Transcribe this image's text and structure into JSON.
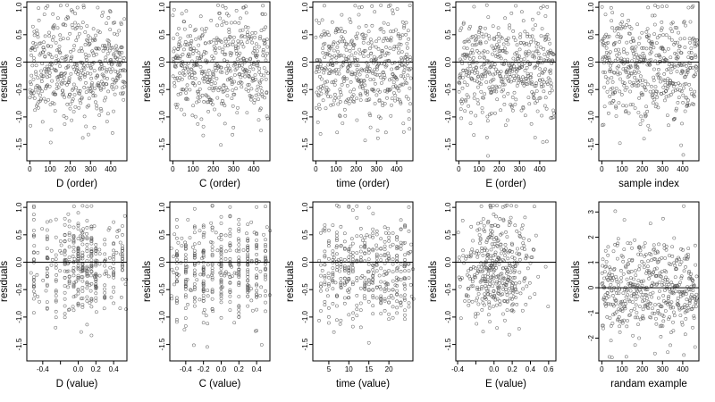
{
  "chart_data": [
    {
      "type": "scatter",
      "xlabel": "D (order)",
      "ylabel": "residuals",
      "xlim": [
        -15,
        480
      ],
      "ylim": [
        -1.8,
        1.1
      ],
      "xticks": [
        0,
        100,
        200,
        300,
        400
      ],
      "yticks": [
        1.0,
        0.5,
        0.0,
        -0.5,
        -1.0,
        -1.5
      ],
      "ytick_labels": [
        "1.0",
        "0.5",
        "0.0",
        "-0.5",
        "-1.0",
        "-1.5"
      ],
      "xtick_labels": [
        "0",
        "100",
        "200",
        "300",
        "400"
      ],
      "reference_line": 0,
      "point_count": 470,
      "x_kind": "index",
      "x_center": 230,
      "x_spread": 230,
      "y_sd": 0.48,
      "seed": 11
    },
    {
      "type": "scatter",
      "xlabel": "C (order)",
      "ylabel": "residuals",
      "xlim": [
        -15,
        480
      ],
      "ylim": [
        -1.8,
        1.1
      ],
      "xticks": [
        0,
        100,
        200,
        300,
        400
      ],
      "yticks": [
        1.0,
        0.5,
        0.0,
        -0.5,
        -1.0,
        -1.5
      ],
      "ytick_labels": [
        "1.0",
        "0.5",
        "0.0",
        "-0.5",
        "-1.0",
        "-1.5"
      ],
      "xtick_labels": [
        "0",
        "100",
        "200",
        "300",
        "400"
      ],
      "reference_line": 0,
      "point_count": 470,
      "x_kind": "index",
      "x_center": 230,
      "x_spread": 230,
      "y_sd": 0.48,
      "seed": 23
    },
    {
      "type": "scatter",
      "xlabel": "time (order)",
      "ylabel": "residuals",
      "xlim": [
        -15,
        480
      ],
      "ylim": [
        -1.8,
        1.1
      ],
      "xticks": [
        0,
        100,
        200,
        300,
        400
      ],
      "yticks": [
        1.0,
        0.5,
        0.0,
        -0.5,
        -1.0,
        -1.5
      ],
      "ytick_labels": [
        "1.0",
        "0.5",
        "0.0",
        "-0.5",
        "-1.0",
        "-1.5"
      ],
      "xtick_labels": [
        "0",
        "100",
        "200",
        "300",
        "400"
      ],
      "reference_line": 0,
      "point_count": 470,
      "x_kind": "index",
      "x_center": 230,
      "x_spread": 230,
      "y_sd": 0.48,
      "seed": 37
    },
    {
      "type": "scatter",
      "xlabel": "E (order)",
      "ylabel": "residuals",
      "xlim": [
        -15,
        480
      ],
      "ylim": [
        -1.8,
        1.1
      ],
      "xticks": [
        0,
        100,
        200,
        300,
        400
      ],
      "yticks": [
        1.0,
        0.5,
        0.0,
        -0.5,
        -1.0,
        -1.5
      ],
      "ytick_labels": [
        "1.0",
        "0.5",
        "0.0",
        "-0.5",
        "-1.0",
        "-1.5"
      ],
      "xtick_labels": [
        "0",
        "100",
        "200",
        "300",
        "400"
      ],
      "reference_line": 0,
      "point_count": 470,
      "x_kind": "index",
      "x_center": 230,
      "x_spread": 230,
      "y_sd": 0.48,
      "seed": 41
    },
    {
      "type": "scatter",
      "xlabel": "sample index",
      "ylabel": "residuals",
      "xlim": [
        -15,
        480
      ],
      "ylim": [
        -1.8,
        1.1
      ],
      "xticks": [
        0,
        100,
        200,
        300,
        400
      ],
      "yticks": [
        1.0,
        0.5,
        0.0,
        -0.5,
        -1.0,
        -1.5
      ],
      "ytick_labels": [
        "1.0",
        "0.5",
        "0.0",
        "-0.5",
        "-1.0",
        "-1.5"
      ],
      "xtick_labels": [
        "0",
        "100",
        "200",
        "300",
        "400"
      ],
      "reference_line": 0,
      "point_count": 470,
      "x_kind": "index",
      "x_center": 230,
      "x_spread": 230,
      "y_sd": 0.48,
      "seed": 53
    },
    {
      "type": "scatter",
      "xlabel": "D (value)",
      "ylabel": "residuals",
      "xlim": [
        -0.58,
        0.55
      ],
      "ylim": [
        -1.8,
        1.1
      ],
      "xticks": [
        -0.4,
        -0.2,
        0.0,
        0.2,
        0.4
      ],
      "yticks": [
        1.0,
        0.5,
        0.0,
        -0.5,
        -1.0,
        -1.5
      ],
      "ytick_labels": [
        "1.0",
        "0.5",
        "0.0",
        "-0.5",
        "-1.0",
        "-1.5"
      ],
      "xtick_labels": [
        "-0.4",
        "",
        "0.0",
        "0.2",
        "0.4"
      ],
      "reference_line": 0,
      "point_count": 400,
      "x_kind": "clustered",
      "x_center": 0.0,
      "x_spread": 0.5,
      "y_sd": 0.48,
      "seed": 61,
      "x_levels": [
        -0.5,
        -0.35,
        -0.25,
        -0.15,
        -0.1,
        -0.05,
        0.0,
        0.05,
        0.1,
        0.15,
        0.2,
        0.3,
        0.4,
        0.5
      ]
    },
    {
      "type": "scatter",
      "xlabel": "C (value)",
      "ylabel": "residuals",
      "xlim": [
        -0.58,
        0.55
      ],
      "ylim": [
        -1.8,
        1.1
      ],
      "xticks": [
        -0.4,
        -0.2,
        0.0,
        0.2,
        0.4
      ],
      "yticks": [
        1.0,
        0.5,
        0.0,
        -0.5,
        -1.0,
        -1.5
      ],
      "ytick_labels": [
        "1.0",
        "0.5",
        "0.0",
        "-0.5",
        "-1.0",
        "-1.5"
      ],
      "xtick_labels": [
        "-0.4",
        "-0.2",
        "0.0",
        "0.2",
        "0.4"
      ],
      "reference_line": 0,
      "point_count": 400,
      "x_kind": "clustered",
      "x_center": 0.0,
      "x_spread": 0.5,
      "y_sd": 0.48,
      "seed": 71,
      "x_levels": [
        -0.5,
        -0.4,
        -0.3,
        -0.2,
        -0.1,
        0.0,
        0.1,
        0.2,
        0.3,
        0.4,
        0.5
      ]
    },
    {
      "type": "scatter",
      "xlabel": "time (value)",
      "ylabel": "residuals",
      "xlim": [
        1,
        26
      ],
      "ylim": [
        -1.8,
        1.1
      ],
      "xticks": [
        5,
        10,
        15,
        20
      ],
      "yticks": [
        1.0,
        0.5,
        0.0,
        -0.5,
        -1.0,
        -1.5
      ],
      "ytick_labels": [
        "1.0",
        "0.5",
        "0.0",
        "-0.5",
        "-1.0",
        "-1.5"
      ],
      "xtick_labels": [
        "5",
        "10",
        "15",
        "20"
      ],
      "reference_line": 0,
      "point_count": 400,
      "x_kind": "clustered",
      "x_center": 13,
      "x_spread": 11,
      "y_sd": 0.48,
      "seed": 83,
      "x_levels": [
        3,
        4,
        5,
        6,
        7,
        8,
        9,
        10,
        11,
        12,
        13,
        14,
        15,
        16,
        17,
        18,
        19,
        20,
        21,
        22,
        23,
        24,
        25
      ]
    },
    {
      "type": "scatter",
      "xlabel": "E (value)",
      "ylabel": "residuals",
      "xlim": [
        -0.42,
        0.68
      ],
      "ylim": [
        -1.8,
        1.1
      ],
      "xticks": [
        -0.4,
        -0.2,
        0.0,
        0.2,
        0.4,
        0.6
      ],
      "yticks": [
        1.0,
        0.5,
        0.0,
        -0.5,
        -1.0,
        -1.5
      ],
      "ytick_labels": [
        "1.0",
        "0.5",
        "0.0",
        "-0.5",
        "-1.0",
        "-1.5"
      ],
      "xtick_labels": [
        "-0.4",
        "",
        "0.0",
        "0.2",
        "0.4",
        "0.6"
      ],
      "reference_line": 0,
      "point_count": 400,
      "x_kind": "skewed",
      "x_center": 0.02,
      "x_spread": 0.2,
      "y_sd": 0.48,
      "seed": 97
    },
    {
      "type": "scatter",
      "xlabel": "randam example",
      "ylabel": "residuals",
      "xlim": [
        -15,
        480
      ],
      "ylim": [
        -2.9,
        3.4
      ],
      "xticks": [
        0,
        100,
        200,
        300,
        400
      ],
      "yticks": [
        3,
        2,
        1,
        0,
        -1,
        -2
      ],
      "ytick_labels": [
        "3",
        "2",
        "1",
        "0",
        "-1",
        "-2"
      ],
      "xtick_labels": [
        "0",
        "100",
        "200",
        "300",
        "400"
      ],
      "reference_line": 0,
      "point_count": 470,
      "x_kind": "index",
      "x_center": 230,
      "x_spread": 230,
      "y_sd": 1.0,
      "seed": 109
    }
  ]
}
